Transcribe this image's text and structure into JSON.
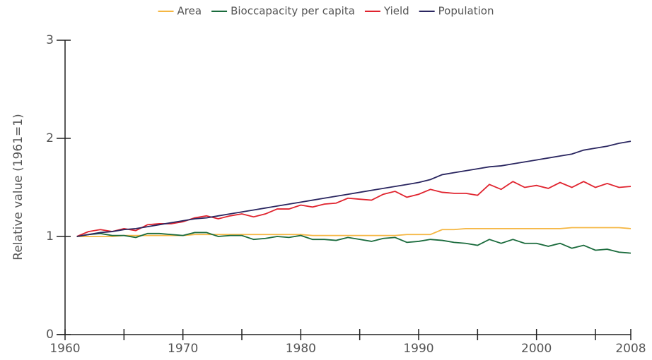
{
  "chart_data": {
    "type": "line",
    "ylabel": "Relative value (1961=1)",
    "x": [
      1961,
      1962,
      1963,
      1964,
      1965,
      1966,
      1967,
      1968,
      1969,
      1970,
      1971,
      1972,
      1973,
      1974,
      1975,
      1976,
      1977,
      1978,
      1979,
      1980,
      1981,
      1982,
      1983,
      1984,
      1985,
      1986,
      1987,
      1988,
      1989,
      1990,
      1991,
      1992,
      1993,
      1994,
      1995,
      1996,
      1997,
      1998,
      1999,
      2000,
      2001,
      2002,
      2003,
      2004,
      2005,
      2006,
      2007,
      2008
    ],
    "series": [
      {
        "name": "Area",
        "color": "#f5b642",
        "values": [
          1.0,
          1.0,
          1.0,
          1.0,
          1.01,
          1.01,
          1.01,
          1.01,
          1.01,
          1.01,
          1.02,
          1.02,
          1.02,
          1.02,
          1.02,
          1.02,
          1.02,
          1.02,
          1.02,
          1.02,
          1.01,
          1.01,
          1.01,
          1.01,
          1.01,
          1.01,
          1.01,
          1.01,
          1.02,
          1.02,
          1.02,
          1.07,
          1.07,
          1.08,
          1.08,
          1.08,
          1.08,
          1.08,
          1.08,
          1.08,
          1.08,
          1.08,
          1.09,
          1.09,
          1.09,
          1.09,
          1.09,
          1.08
        ]
      },
      {
        "name": "Bioccapacity per capita",
        "color": "#1a6b3c",
        "values": [
          1.0,
          1.02,
          1.03,
          1.01,
          1.01,
          0.99,
          1.03,
          1.03,
          1.02,
          1.01,
          1.04,
          1.04,
          1.0,
          1.01,
          1.01,
          0.97,
          0.98,
          1.0,
          0.99,
          1.01,
          0.97,
          0.97,
          0.96,
          0.99,
          0.97,
          0.95,
          0.98,
          0.99,
          0.94,
          0.95,
          0.97,
          0.96,
          0.94,
          0.93,
          0.91,
          0.97,
          0.93,
          0.97,
          0.93,
          0.93,
          0.9,
          0.93,
          0.88,
          0.91,
          0.86,
          0.87,
          0.84,
          0.83
        ]
      },
      {
        "name": "Yield",
        "color": "#e0232e",
        "values": [
          1.0,
          1.05,
          1.07,
          1.05,
          1.08,
          1.06,
          1.12,
          1.13,
          1.13,
          1.15,
          1.19,
          1.21,
          1.18,
          1.21,
          1.23,
          1.2,
          1.23,
          1.28,
          1.28,
          1.32,
          1.3,
          1.33,
          1.34,
          1.39,
          1.38,
          1.37,
          1.43,
          1.46,
          1.4,
          1.43,
          1.48,
          1.45,
          1.44,
          1.44,
          1.42,
          1.53,
          1.48,
          1.56,
          1.5,
          1.52,
          1.49,
          1.55,
          1.5,
          1.56,
          1.5,
          1.54,
          1.5,
          1.51
        ]
      },
      {
        "name": "Population",
        "color": "#2a2660",
        "values": [
          1.0,
          1.02,
          1.04,
          1.05,
          1.07,
          1.08,
          1.1,
          1.12,
          1.14,
          1.16,
          1.18,
          1.19,
          1.21,
          1.23,
          1.25,
          1.27,
          1.29,
          1.31,
          1.33,
          1.35,
          1.37,
          1.39,
          1.41,
          1.43,
          1.45,
          1.47,
          1.49,
          1.51,
          1.53,
          1.55,
          1.58,
          1.63,
          1.65,
          1.67,
          1.69,
          1.71,
          1.72,
          1.74,
          1.76,
          1.78,
          1.8,
          1.82,
          1.84,
          1.88,
          1.9,
          1.92,
          1.95,
          1.97
        ]
      }
    ],
    "xlim": [
      1960,
      2008
    ],
    "xticks": [
      1960,
      1970,
      1980,
      1990,
      2000,
      2008
    ],
    "xminor_ticks": [
      1965,
      1975,
      1985,
      1995,
      2005
    ],
    "ylim": [
      0,
      3
    ],
    "yticks": [
      0,
      1,
      2,
      3
    ],
    "legend": "top"
  }
}
